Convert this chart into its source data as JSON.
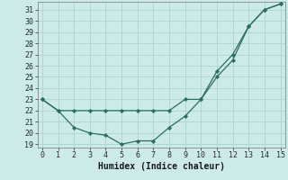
{
  "xlabel": "Humidex (Indice chaleur)",
  "x": [
    0,
    1,
    2,
    3,
    4,
    5,
    6,
    7,
    8,
    9,
    10,
    11,
    12,
    13,
    14,
    15
  ],
  "line1_y": [
    23,
    22,
    22,
    22,
    22,
    22,
    22,
    22,
    22,
    23,
    23,
    25,
    26.5,
    29.5,
    31,
    31.5
  ],
  "line2_y": [
    23,
    22,
    20.5,
    20,
    19.8,
    19,
    19.3,
    19.3,
    20.5,
    21.5,
    23,
    25.5,
    27,
    29.5,
    31,
    31.5
  ],
  "line_color": "#2a6e62",
  "marker": "D",
  "marker_size": 2.2,
  "bg_color": "#cceae8",
  "grid_color": "#aad4d0",
  "xlim": [
    -0.3,
    15.3
  ],
  "ymin": 19,
  "ymax": 31.7,
  "yticks": [
    19,
    20,
    21,
    22,
    23,
    24,
    25,
    26,
    27,
    28,
    29,
    30,
    31
  ],
  "xticks": [
    0,
    1,
    2,
    3,
    4,
    5,
    6,
    7,
    8,
    9,
    10,
    11,
    12,
    13,
    14,
    15
  ],
  "tick_fontsize": 6,
  "xlabel_fontsize": 7,
  "lw": 0.9
}
